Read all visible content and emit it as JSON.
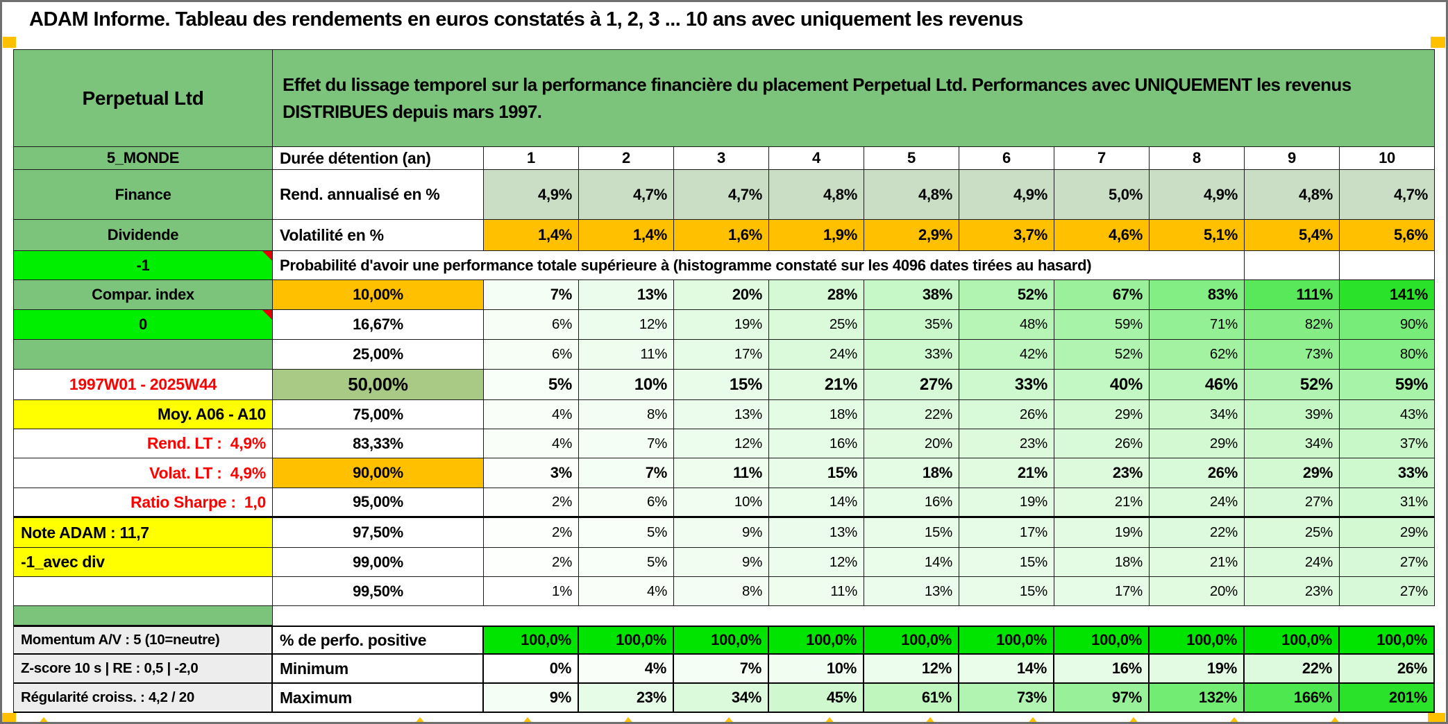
{
  "title_bar": {
    "text": "ADAM Informe. Tableau des rendements en euros constatés à 1, 2, 3 ... 10 ans avec uniquement les revenus"
  },
  "sheet_header": {
    "name": "Perpetual Ltd",
    "description": "Effet du lissage temporel sur la performance financière du placement Perpetual Ltd. Performances avec UNIQUEMENT les revenus DISTRIBUES depuis mars 1997."
  },
  "duration_header": {
    "label": "5_MONDE",
    "metric": "Durée détention (an)",
    "values": [
      "1",
      "2",
      "3",
      "4",
      "5",
      "6",
      "7",
      "8",
      "9",
      "10"
    ]
  },
  "metric_rows": [
    {
      "label": "Finance",
      "metric": "Rend. annualisé en %",
      "style": "sage",
      "values": [
        "4,9%",
        "4,7%",
        "4,7%",
        "4,8%",
        "4,8%",
        "4,9%",
        "5,0%",
        "4,9%",
        "4,8%",
        "4,7%"
      ]
    },
    {
      "label": "Dividende",
      "metric": "Volatilité en %",
      "style": "orange",
      "values": [
        "1,4%",
        "1,4%",
        "1,6%",
        "1,9%",
        "2,9%",
        "3,7%",
        "4,6%",
        "5,1%",
        "5,4%",
        "5,6%"
      ]
    }
  ],
  "probability_section": {
    "corner_label": "-1",
    "header": "Probabilité d'avoir une performance totale supérieure à (histogramme constaté sur les 4096 dates tirées au hasard)",
    "rows": [
      {
        "label": "Compar. index",
        "label_style": "green",
        "threshold": "10,00%",
        "threshold_style": "orange",
        "bold": true,
        "values": [
          "7%",
          "13%",
          "20%",
          "28%",
          "38%",
          "52%",
          "67%",
          "83%",
          "111%",
          "141%"
        ]
      },
      {
        "label": "0",
        "label_style": "bright",
        "has_note": true,
        "threshold": "16,67%",
        "threshold_style": "white",
        "bold": false,
        "values": [
          "6%",
          "12%",
          "19%",
          "25%",
          "35%",
          "48%",
          "59%",
          "71%",
          "82%",
          "90%"
        ]
      },
      {
        "label": "",
        "label_style": "green",
        "threshold": "25,00%",
        "threshold_style": "white",
        "bold": false,
        "values": [
          "6%",
          "11%",
          "17%",
          "24%",
          "33%",
          "42%",
          "52%",
          "62%",
          "73%",
          "80%"
        ]
      },
      {
        "label": "1997W01 - 2025W44",
        "label_style": "white-red-center",
        "threshold": "50,00%",
        "threshold_style": "olive",
        "bold": true,
        "big": true,
        "values": [
          "5%",
          "10%",
          "15%",
          "21%",
          "27%",
          "33%",
          "40%",
          "46%",
          "52%",
          "59%"
        ]
      },
      {
        "label": "Moy. A06 - A10",
        "label_style": "yellow-right",
        "threshold": "75,00%",
        "threshold_style": "white",
        "bold": false,
        "values": [
          "4%",
          "8%",
          "13%",
          "18%",
          "22%",
          "26%",
          "29%",
          "34%",
          "39%",
          "43%"
        ]
      },
      {
        "label": "Rend. LT :  4,9%",
        "label_style": "red-right",
        "threshold": "83,33%",
        "threshold_style": "white",
        "bold": false,
        "values": [
          "4%",
          "7%",
          "12%",
          "16%",
          "20%",
          "23%",
          "26%",
          "29%",
          "34%",
          "37%"
        ]
      },
      {
        "label": "Volat. LT :  4,9%",
        "label_style": "red-right",
        "threshold": "90,00%",
        "threshold_style": "orange",
        "bold": true,
        "values": [
          "3%",
          "7%",
          "11%",
          "15%",
          "18%",
          "21%",
          "23%",
          "26%",
          "29%",
          "33%"
        ]
      },
      {
        "label": "Ratio Sharpe :  1,0",
        "label_style": "red-right",
        "threshold": "95,00%",
        "threshold_style": "white",
        "bold": false,
        "thick_bottom": true,
        "values": [
          "2%",
          "6%",
          "10%",
          "14%",
          "16%",
          "19%",
          "21%",
          "24%",
          "27%",
          "31%"
        ]
      },
      {
        "label": "Note ADAM : 11,7",
        "label_style": "yellow-left",
        "threshold": "97,50%",
        "threshold_style": "white",
        "bold": false,
        "values": [
          "2%",
          "5%",
          "9%",
          "13%",
          "15%",
          "17%",
          "19%",
          "22%",
          "25%",
          "29%"
        ]
      },
      {
        "label": "-1_avec div",
        "label_style": "yellow-left",
        "threshold": "99,00%",
        "threshold_style": "white",
        "bold": false,
        "values": [
          "2%",
          "5%",
          "9%",
          "12%",
          "14%",
          "15%",
          "18%",
          "21%",
          "24%",
          "27%"
        ]
      },
      {
        "label": "",
        "label_style": "white",
        "threshold": "99,50%",
        "threshold_style": "white",
        "bold": false,
        "values": [
          "1%",
          "4%",
          "8%",
          "11%",
          "13%",
          "15%",
          "17%",
          "20%",
          "23%",
          "27%"
        ]
      }
    ]
  },
  "stats_section": {
    "rows": [
      {
        "label": "Momentum A/V : 5 (10=neutre)",
        "metric": "% de perfo. positive",
        "style": "solid-green",
        "values": [
          "100,0%",
          "100,0%",
          "100,0%",
          "100,0%",
          "100,0%",
          "100,0%",
          "100,0%",
          "100,0%",
          "100,0%",
          "100,0%"
        ]
      },
      {
        "label": "Z-score 10 s | RE : 0,5 | -2,0",
        "metric": "Minimum",
        "style": "ramp",
        "values": [
          "0%",
          "4%",
          "7%",
          "10%",
          "12%",
          "14%",
          "16%",
          "19%",
          "22%",
          "26%"
        ]
      },
      {
        "label": "Régularité croiss. : 4,2 / 20",
        "metric": "Maximum",
        "style": "ramp-wide",
        "values": [
          "9%",
          "23%",
          "34%",
          "45%",
          "61%",
          "73%",
          "97%",
          "132%",
          "166%",
          "201%"
        ]
      }
    ]
  },
  "colors": {
    "header_green": "#7CC47C",
    "sage_green": "#C9DEC5",
    "orange": "#FFC000",
    "bright_green": "#00EE00",
    "solid_green": "#00E400",
    "olive_green": "#A9CA85",
    "yellow": "#FFFF00",
    "light_gray": "#EDEDED",
    "red_text": "#FE0000",
    "ramp_green_end": "#00DC00",
    "note_red": "#E60000"
  }
}
